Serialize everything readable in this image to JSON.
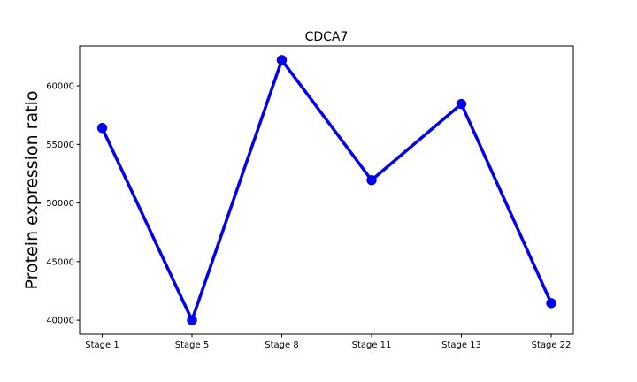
{
  "chart_data": {
    "type": "line",
    "title": "CDCA7",
    "xlabel": "",
    "ylabel": "Protein expression ratio",
    "categories": [
      "Stage 1",
      "Stage 5",
      "Stage 8",
      "Stage 11",
      "Stage 13",
      "Stage 22"
    ],
    "series": [
      {
        "values": [
          56400,
          40000,
          62200,
          51950,
          58450,
          41450
        ],
        "color": "#0000ee"
      }
    ],
    "ylim": [
      38800,
      63400
    ],
    "yticks": [
      40000,
      45000,
      50000,
      55000,
      60000
    ],
    "ytick_labels": [
      "40000",
      "45000",
      "50000",
      "55000",
      "60000"
    ],
    "grid": false,
    "legend": false,
    "marker": "circle"
  }
}
